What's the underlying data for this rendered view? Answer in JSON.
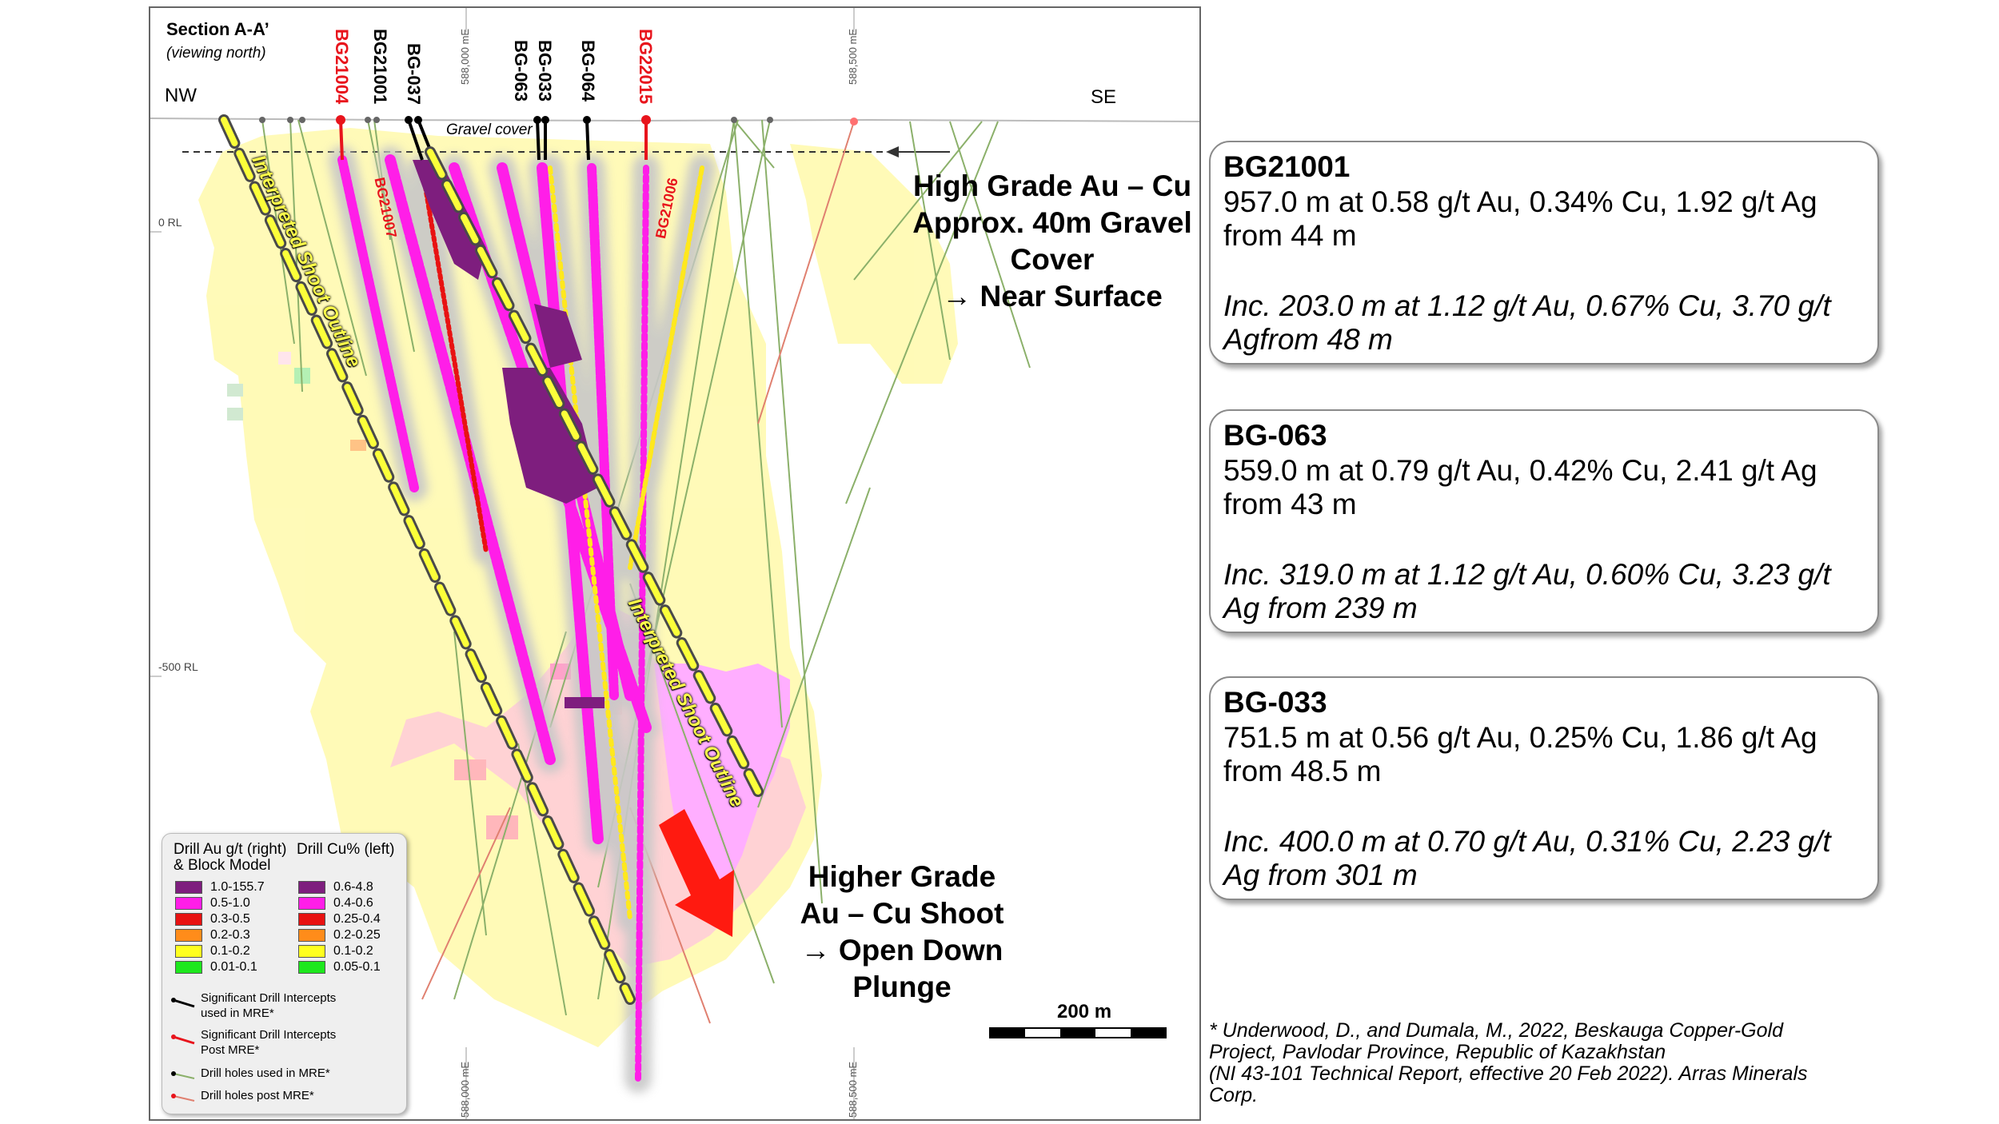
{
  "section": {
    "title": "Section A-A’",
    "subtitle": "(viewing north)",
    "dir_left": "NW",
    "dir_right": "SE",
    "easting_top_1": "588,000 mE",
    "easting_top_2": "588,500 mE",
    "easting_bottom_1": "588,000 mE",
    "easting_bottom_2": "588,500 mE",
    "rl_0": "0 RL",
    "rl_500": "-500 RL",
    "gravel_label": "Gravel cover",
    "shoot_left": "Interpreted Shoot Outline",
    "shoot_right": "Interpreted Shoot Outline",
    "collar_labels": [
      {
        "text": "BG21004",
        "color": "#e8141c"
      },
      {
        "text": "BG21001",
        "color": "#000000"
      },
      {
        "text": "BG-037",
        "color": "#000000"
      },
      {
        "text": "BG-063",
        "color": "#000000"
      },
      {
        "text": "BG-033",
        "color": "#000000"
      },
      {
        "text": "BG-064",
        "color": "#000000"
      },
      {
        "text": "BG22015",
        "color": "#e8141c"
      }
    ],
    "trace_labels": [
      {
        "text": "BG21007",
        "color": "#e8141c"
      },
      {
        "text": "BG21006",
        "color": "#e8141c"
      }
    ],
    "callout_near_surface": [
      "High Grade Au – Cu",
      "Approx. 40m Gravel",
      "Cover",
      "→ Near Surface"
    ],
    "callout_down_plunge": [
      "Higher Grade",
      "Au – Cu Shoot",
      "→ Open Down",
      "Plunge"
    ],
    "scale_label": "200 m",
    "colors": {
      "shoot_outline": "#fbff3a",
      "arrow": "#ff1a10",
      "block_light": "#fffab4",
      "block_pink": "#ffcdd2"
    }
  },
  "legend": {
    "au_header": [
      "Drill Au g/t (right)",
      "& Block Model"
    ],
    "cu_header": "Drill Cu% (left)",
    "au_items": [
      {
        "label": "1.0-155.7",
        "color": "#7e1e7e"
      },
      {
        "label": "0.5-1.0",
        "color": "#ff1ee8"
      },
      {
        "label": "0.3-0.5",
        "color": "#e81212"
      },
      {
        "label": "0.2-0.3",
        "color": "#ff8c1a"
      },
      {
        "label": "0.1-0.2",
        "color": "#ffff1e"
      },
      {
        "label": "0.01-0.1",
        "color": "#1ee81e"
      }
    ],
    "cu_items": [
      {
        "label": "0.6-4.8",
        "color": "#7e1e7e"
      },
      {
        "label": "0.4-0.6",
        "color": "#ff1ee8"
      },
      {
        "label": "0.25-0.4",
        "color": "#e81212"
      },
      {
        "label": "0.2-0.25",
        "color": "#ff8c1a"
      },
      {
        "label": "0.1-0.2",
        "color": "#ffff1e"
      },
      {
        "label": "0.05-0.1",
        "color": "#1ee81e"
      }
    ],
    "symbols": [
      [
        "Significant Drill Intercepts",
        "used in MRE*"
      ],
      [
        "Significant Drill Intercepts",
        "Post MRE*"
      ],
      [
        "Drill holes used in MRE*"
      ],
      [
        "Drill holes post MRE*"
      ]
    ]
  },
  "cards": [
    {
      "title": "BG21001",
      "main": [
        "957.0 m at 0.58 g/t Au, 0.34% Cu, 1.92 g/t Ag",
        "from 44 m"
      ],
      "inc": [
        "Inc. 203.0 m at 1.12 g/t Au, 0.67% Cu, 3.70 g/t",
        "Agfrom 48 m"
      ]
    },
    {
      "title": "BG-063",
      "main": [
        "559.0 m at 0.79 g/t Au, 0.42% Cu, 2.41 g/t Ag",
        "from 43 m"
      ],
      "inc": [
        "Inc. 319.0 m at 1.12 g/t Au, 0.60% Cu, 3.23 g/t",
        "Ag from 239 m"
      ]
    },
    {
      "title": "BG-033",
      "main": [
        "751.5 m at 0.56 g/t Au, 0.25% Cu, 1.86 g/t Ag",
        "from 48.5 m"
      ],
      "inc": [
        "Inc. 400.0 m at 0.70 g/t Au, 0.31% Cu, 2.23 g/t",
        "Ag from 301 m"
      ]
    }
  ],
  "reference": [
    "* Underwood, D., and Dumala, M., 2022, Beskauga Copper-Gold",
    "Project, Pavlodar Province, Republic of Kazakhstan",
    "(NI 43-101 Technical Report, effective 20 Feb 2022). Arras Minerals",
    "Corp."
  ]
}
